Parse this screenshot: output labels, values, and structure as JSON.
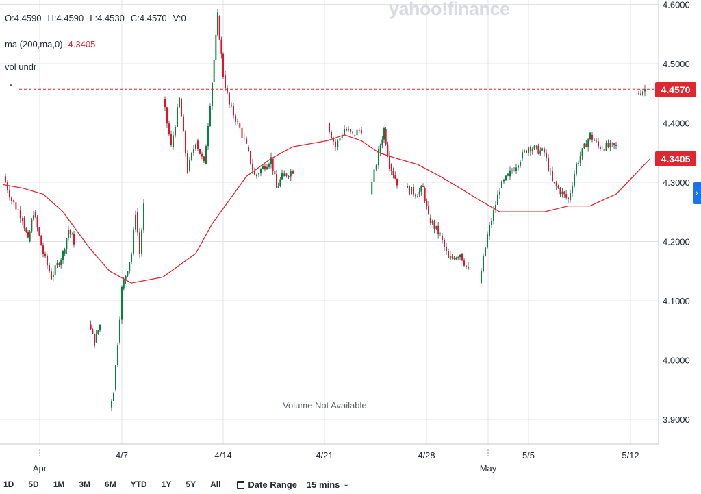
{
  "watermark": {
    "text": "yahoo!finance"
  },
  "legend": {
    "open": "O:4.4590",
    "high": "H:4.4590",
    "low": "L:4.4530",
    "close": "C:4.4570",
    "volume": "V:0",
    "ma_label": "ma (200,ma,0)",
    "ma_value": "4.3405",
    "vol_label": "vol undr"
  },
  "price_badges": {
    "last": "4.4570",
    "ma": "4.3405"
  },
  "volume_message": "Volume Not Available",
  "range_buttons": [
    "1D",
    "5D",
    "1M",
    "3M",
    "6M",
    "YTD",
    "1Y",
    "5Y",
    "All"
  ],
  "date_range_label": "Date Range",
  "interval_label": "15 mins",
  "colors": {
    "up": "#00873c",
    "down": "#eb0f29",
    "ma_line": "#e0262f",
    "grid": "#e0e3eb",
    "badge": "#e0262f"
  },
  "chart_data": {
    "type": "candlestick",
    "title": "",
    "xlabel": "",
    "ylabel": "",
    "ylim": [
      3.87,
      4.605
    ],
    "y_ticks": [
      "3.9000",
      "4.0000",
      "4.1000",
      "4.2000",
      "4.3000",
      "4.4000",
      "4.5000",
      "4.6000"
    ],
    "y_tick_values": [
      3.9,
      4.0,
      4.1,
      4.2,
      4.3,
      4.4,
      4.5,
      4.6
    ],
    "x_ticks": [
      "4/7",
      "4/14",
      "4/21",
      "4/28",
      "5/5",
      "5/12"
    ],
    "x_ticks_secondary": [
      "Apr",
      "May"
    ],
    "current_price": 4.457,
    "ma_current": 4.3405,
    "price_path": [
      [
        "3/31",
        4.31
      ],
      [
        "3/31",
        4.27
      ],
      [
        "4/1",
        4.24
      ],
      [
        "4/1",
        4.2
      ],
      [
        "4/1",
        4.25
      ],
      [
        "4/2",
        4.18
      ],
      [
        "4/2",
        4.14
      ],
      [
        "4/3",
        4.18
      ],
      [
        "4/3",
        4.22
      ],
      [
        "4/3",
        4.2
      ],
      [
        "4/4",
        4.06
      ],
      [
        "4/4",
        4.03
      ],
      [
        "4/4",
        4.06
      ],
      [
        "4/7",
        3.92
      ],
      [
        "4/7",
        3.95
      ],
      [
        "4/7",
        4.03
      ],
      [
        "4/7",
        4.12
      ],
      [
        "4/8",
        4.18
      ],
      [
        "4/8",
        4.25
      ],
      [
        "4/8",
        4.18
      ],
      [
        "4/8",
        4.26
      ],
      [
        "4/9",
        4.44
      ],
      [
        "4/9",
        4.36
      ],
      [
        "4/10",
        4.44
      ],
      [
        "4/10",
        4.32
      ],
      [
        "4/11",
        4.37
      ],
      [
        "4/11",
        4.33
      ],
      [
        "4/14",
        4.47
      ],
      [
        "4/14",
        4.58
      ],
      [
        "4/14",
        4.48
      ],
      [
        "4/15",
        4.43
      ],
      [
        "4/15",
        4.4
      ],
      [
        "4/16",
        4.36
      ],
      [
        "4/16",
        4.31
      ],
      [
        "4/17",
        4.34
      ],
      [
        "4/17",
        4.29
      ],
      [
        "4/17",
        4.31
      ],
      [
        "4/18",
        4.32
      ],
      [
        "4/21",
        4.4
      ],
      [
        "4/21",
        4.36
      ],
      [
        "4/22",
        4.39
      ],
      [
        "4/22",
        4.38
      ],
      [
        "4/23",
        4.39
      ],
      [
        "4/23",
        4.28
      ],
      [
        "4/24",
        4.35
      ],
      [
        "4/24",
        4.39
      ],
      [
        "4/24",
        4.33
      ],
      [
        "4/25",
        4.3
      ],
      [
        "4/25",
        4.29
      ],
      [
        "4/28",
        4.28
      ],
      [
        "4/28",
        4.29
      ],
      [
        "4/28",
        4.24
      ],
      [
        "4/29",
        4.21
      ],
      [
        "4/29",
        4.17
      ],
      [
        "4/30",
        4.18
      ],
      [
        "4/30",
        4.15
      ],
      [
        "5/1",
        4.13
      ],
      [
        "5/1",
        4.21
      ],
      [
        "5/2",
        4.29
      ],
      [
        "5/2",
        4.31
      ],
      [
        "5/5",
        4.34
      ],
      [
        "5/5",
        4.36
      ],
      [
        "5/6",
        4.35
      ],
      [
        "5/6",
        4.3
      ],
      [
        "5/7",
        4.27
      ],
      [
        "5/7",
        4.33
      ],
      [
        "5/8",
        4.38
      ],
      [
        "5/8",
        4.36
      ],
      [
        "5/9",
        4.36
      ],
      [
        "5/12",
        4.45
      ],
      [
        "5/12",
        4.457
      ]
    ],
    "ma_path": [
      [
        "3/31",
        4.296
      ],
      [
        "4/1",
        4.29
      ],
      [
        "4/2",
        4.28
      ],
      [
        "4/3",
        4.25
      ],
      [
        "4/4",
        4.19
      ],
      [
        "4/7",
        4.15
      ],
      [
        "4/8",
        4.13
      ],
      [
        "4/9",
        4.14
      ],
      [
        "4/10",
        4.16
      ],
      [
        "4/11",
        4.18
      ],
      [
        "4/14",
        4.23
      ],
      [
        "4/15",
        4.27
      ],
      [
        "4/16",
        4.31
      ],
      [
        "4/17",
        4.34
      ],
      [
        "4/18",
        4.36
      ],
      [
        "4/21",
        4.37
      ],
      [
        "4/22",
        4.38
      ],
      [
        "4/23",
        4.37
      ],
      [
        "4/24",
        4.35
      ],
      [
        "4/25",
        4.34
      ],
      [
        "4/28",
        4.33
      ],
      [
        "4/29",
        4.31
      ],
      [
        "4/30",
        4.29
      ],
      [
        "5/1",
        4.27
      ],
      [
        "5/2",
        4.25
      ],
      [
        "5/5",
        4.25
      ],
      [
        "5/6",
        4.25
      ],
      [
        "5/7",
        4.26
      ],
      [
        "5/8",
        4.26
      ],
      [
        "5/9",
        4.28
      ],
      [
        "5/12",
        4.34
      ]
    ],
    "legend_placement": "top-left",
    "grid": true
  }
}
